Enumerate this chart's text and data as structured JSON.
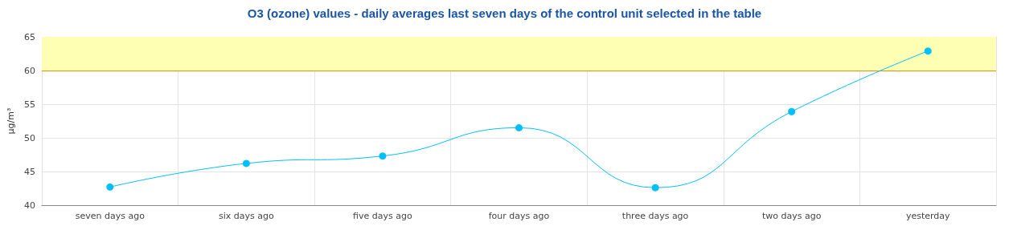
{
  "chart_data": {
    "type": "line",
    "title": "O3 (ozone) values - daily averages last seven days of the control unit selected in the table",
    "ylabel": "µg/m³",
    "categories": [
      "seven days ago",
      "six days ago",
      "five days ago",
      "four days ago",
      "three days ago",
      "two days ago",
      "yesterday"
    ],
    "series": [
      {
        "color": "#00bfff",
        "values": [
          42.7,
          46.2,
          47.3,
          51.5,
          42.6,
          53.9,
          62.9
        ]
      }
    ],
    "ylim": [
      40,
      65
    ],
    "yticks": [
      40,
      45,
      50,
      55,
      60,
      65
    ],
    "grid": true,
    "marker": "circle",
    "line_style": "solid",
    "ref_lines": [
      {
        "axis": "y",
        "value": 60,
        "color": "#f08c00"
      }
    ],
    "bands": [
      {
        "axis": "y",
        "from": 60,
        "to": 65,
        "color": "#ffffb3"
      }
    ]
  }
}
